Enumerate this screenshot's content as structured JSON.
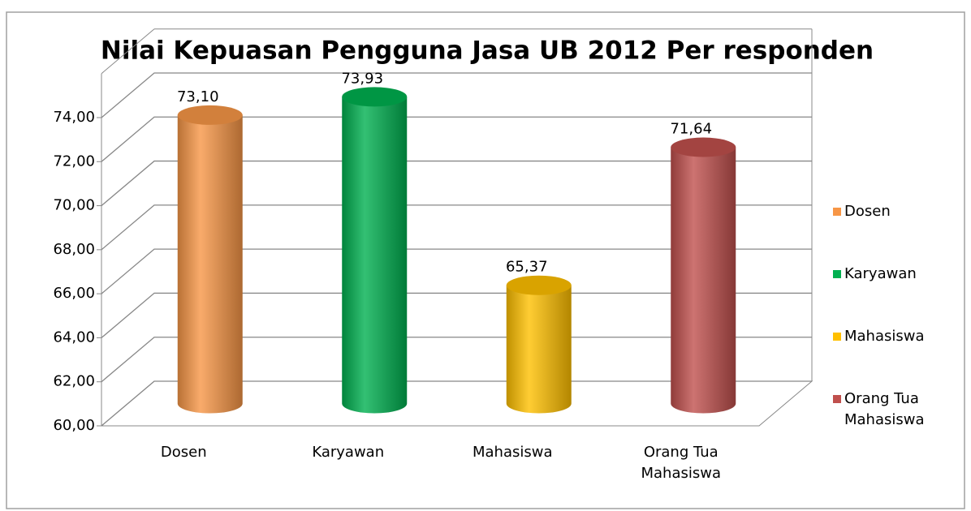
{
  "chart_data": {
    "type": "bar3d",
    "title": "Nilai Kepuasan Pengguna Jasa UB 2012 Per responden",
    "categories": [
      "Dosen",
      "Karyawan",
      "Mahasiswa",
      "Orang Tua Mahasiswa"
    ],
    "values": [
      73.1,
      73.93,
      65.37,
      71.64
    ],
    "value_labels": [
      "73,10",
      "73,93",
      "65,37",
      "71,64"
    ],
    "colors": [
      "#f79646",
      "#00b050",
      "#ffc000",
      "#c0504d"
    ],
    "ylim": [
      60,
      76
    ],
    "yticks": [
      {
        "value": 60,
        "label": "60,00"
      },
      {
        "value": 62,
        "label": "62,00"
      },
      {
        "value": 64,
        "label": "64,00"
      },
      {
        "value": 66,
        "label": "66,00"
      },
      {
        "value": 68,
        "label": "68,00"
      },
      {
        "value": 70,
        "label": "70,00"
      },
      {
        "value": 72,
        "label": "72,00"
      },
      {
        "value": 74,
        "label": "74,00"
      }
    ],
    "grid": true,
    "legend": "right"
  }
}
